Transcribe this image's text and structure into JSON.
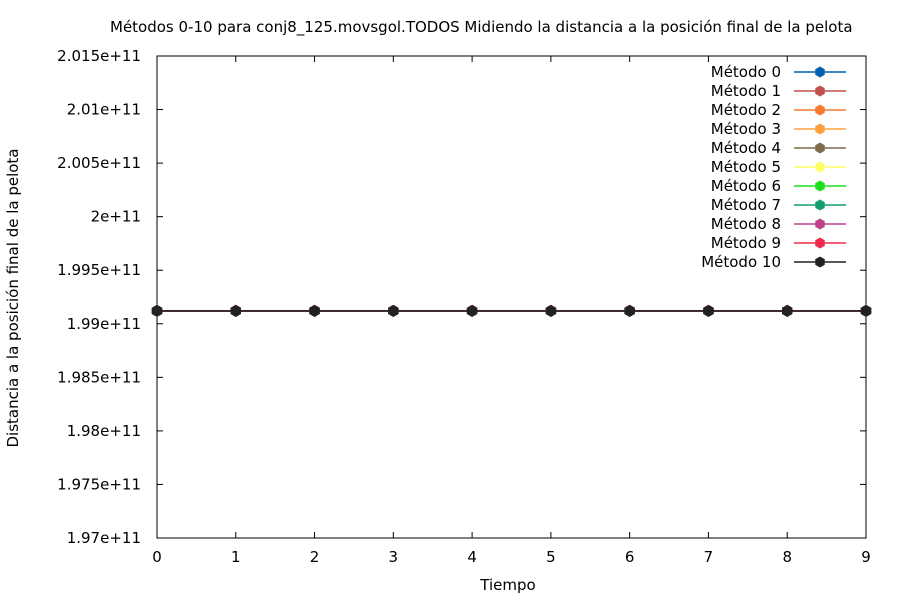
{
  "chart_data": {
    "type": "line",
    "title": "Métodos 0-10 para conj8_125.movsgol.TODOS Midiendo la distancia a la posición final de la pelota",
    "xlabel": "Tiempo",
    "ylabel": "Distancia a la posición final de la pelota",
    "xlim": [
      0,
      9
    ],
    "ylim": [
      197000000000.0,
      201500000000.0
    ],
    "x_ticks": [
      0,
      1,
      2,
      3,
      4,
      5,
      6,
      7,
      8,
      9
    ],
    "x_tick_labels": [
      "0",
      "1",
      "2",
      "3",
      "4",
      "5",
      "6",
      "7",
      "8",
      "9"
    ],
    "y_ticks": [
      197000000000.0,
      197500000000.0,
      198000000000.0,
      198500000000.0,
      199000000000.0,
      199500000000.0,
      200000000000.0,
      200500000000.0,
      201000000000.0,
      201500000000.0
    ],
    "y_tick_labels": [
      "1.97e+11",
      "1.975e+11",
      "1.98e+11",
      "1.985e+11",
      "1.99e+11",
      "1.995e+11",
      "2e+11",
      "2.005e+11",
      "2.01e+11",
      "2.015e+11"
    ],
    "grid": false,
    "legend_position": "top-right",
    "x": [
      0,
      1,
      2,
      3,
      4,
      5,
      6,
      7,
      8,
      9
    ],
    "series": [
      {
        "name": "Método 0",
        "color": "#0060ad",
        "values": [
          199120000000.0,
          199120000000.0,
          199120000000.0,
          199120000000.0,
          199120000000.0,
          199120000000.0,
          199120000000.0,
          199120000000.0,
          199120000000.0,
          199120000000.0
        ]
      },
      {
        "name": "Método 1",
        "color": "#c0504d",
        "values": [
          199120000000.0,
          199120000000.0,
          199120000000.0,
          199120000000.0,
          199120000000.0,
          199120000000.0,
          199120000000.0,
          199120000000.0,
          199120000000.0,
          199120000000.0
        ]
      },
      {
        "name": "Método 2",
        "color": "#f47a30",
        "values": [
          199120000000.0,
          199120000000.0,
          199120000000.0,
          199120000000.0,
          199120000000.0,
          199120000000.0,
          199120000000.0,
          199120000000.0,
          199120000000.0,
          199120000000.0
        ]
      },
      {
        "name": "Método 3",
        "color": "#ffa040",
        "values": [
          199120000000.0,
          199120000000.0,
          199120000000.0,
          199120000000.0,
          199120000000.0,
          199120000000.0,
          199120000000.0,
          199120000000.0,
          199120000000.0,
          199120000000.0
        ]
      },
      {
        "name": "Método 4",
        "color": "#7e6d4f",
        "values": [
          199120000000.0,
          199120000000.0,
          199120000000.0,
          199120000000.0,
          199120000000.0,
          199120000000.0,
          199120000000.0,
          199120000000.0,
          199120000000.0,
          199120000000.0
        ]
      },
      {
        "name": "Método 5",
        "color": "#ffff66",
        "values": [
          199120000000.0,
          199120000000.0,
          199120000000.0,
          199120000000.0,
          199120000000.0,
          199120000000.0,
          199120000000.0,
          199120000000.0,
          199120000000.0,
          199120000000.0
        ]
      },
      {
        "name": "Método 6",
        "color": "#1ee01e",
        "values": [
          199120000000.0,
          199120000000.0,
          199120000000.0,
          199120000000.0,
          199120000000.0,
          199120000000.0,
          199120000000.0,
          199120000000.0,
          199120000000.0,
          199120000000.0
        ]
      },
      {
        "name": "Método 7",
        "color": "#12a070",
        "values": [
          199120000000.0,
          199120000000.0,
          199120000000.0,
          199120000000.0,
          199120000000.0,
          199120000000.0,
          199120000000.0,
          199120000000.0,
          199120000000.0,
          199120000000.0
        ]
      },
      {
        "name": "Método 8",
        "color": "#b8428c",
        "values": [
          199120000000.0,
          199120000000.0,
          199120000000.0,
          199120000000.0,
          199120000000.0,
          199120000000.0,
          199120000000.0,
          199120000000.0,
          199120000000.0,
          199120000000.0
        ]
      },
      {
        "name": "Método 9",
        "color": "#f0284a",
        "values": [
          199120000000.0,
          199120000000.0,
          199120000000.0,
          199120000000.0,
          199120000000.0,
          199120000000.0,
          199120000000.0,
          199120000000.0,
          199120000000.0,
          199120000000.0
        ]
      },
      {
        "name": "Método 10",
        "color": "#222222",
        "values": [
          199120000000.0,
          199120000000.0,
          199120000000.0,
          199120000000.0,
          199120000000.0,
          199120000000.0,
          199120000000.0,
          199120000000.0,
          199120000000.0,
          199120000000.0
        ]
      }
    ]
  }
}
